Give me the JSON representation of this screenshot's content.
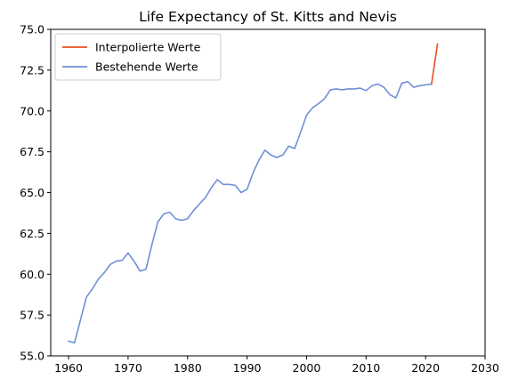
{
  "chart_data": {
    "type": "line",
    "title": "Life Expectancy of St. Kitts and Nevis",
    "xlabel": "",
    "ylabel": "",
    "xlim": [
      1957,
      2030
    ],
    "ylim": [
      55.0,
      75.0
    ],
    "xticks": [
      1960,
      1970,
      1980,
      1990,
      2000,
      2010,
      2020,
      2030
    ],
    "yticks": [
      55.0,
      57.5,
      60.0,
      62.5,
      65.0,
      67.5,
      70.0,
      72.5,
      75.0
    ],
    "grid": false,
    "legend_position": "top-left",
    "series": [
      {
        "name": "Interpolierte Werte",
        "color": "#e8501e",
        "x": [
          2021,
          2022
        ],
        "y": [
          71.65,
          74.1
        ]
      },
      {
        "name": "Bestehende Werte",
        "color": "#6f8fd8",
        "x": [
          1960,
          1961,
          1962,
          1963,
          1964,
          1965,
          1966,
          1967,
          1968,
          1969,
          1970,
          1971,
          1972,
          1973,
          1974,
          1975,
          1976,
          1977,
          1978,
          1979,
          1980,
          1981,
          1982,
          1983,
          1984,
          1985,
          1986,
          1987,
          1988,
          1989,
          1990,
          1991,
          1992,
          1993,
          1994,
          1995,
          1996,
          1997,
          1998,
          1999,
          2000,
          2001,
          2002,
          2003,
          2004,
          2005,
          2006,
          2007,
          2008,
          2009,
          2010,
          2011,
          2012,
          2013,
          2014,
          2015,
          2016,
          2017,
          2018,
          2019,
          2020,
          2021
        ],
        "y": [
          55.9,
          55.8,
          57.2,
          58.6,
          59.1,
          59.7,
          60.1,
          60.6,
          60.8,
          60.85,
          61.3,
          60.8,
          60.2,
          60.3,
          61.8,
          63.2,
          63.7,
          63.8,
          63.4,
          63.3,
          63.4,
          63.9,
          64.3,
          64.7,
          65.3,
          65.8,
          65.5,
          65.5,
          65.45,
          65.0,
          65.2,
          66.2,
          67.0,
          67.6,
          67.3,
          67.15,
          67.3,
          67.85,
          67.7,
          68.7,
          69.75,
          70.2,
          70.45,
          70.75,
          71.3,
          71.35,
          71.3,
          71.35,
          71.35,
          71.4,
          71.25,
          71.55,
          71.65,
          71.45,
          71.0,
          70.8,
          71.7,
          71.8,
          71.45,
          71.55,
          71.6,
          71.65
        ]
      }
    ]
  }
}
